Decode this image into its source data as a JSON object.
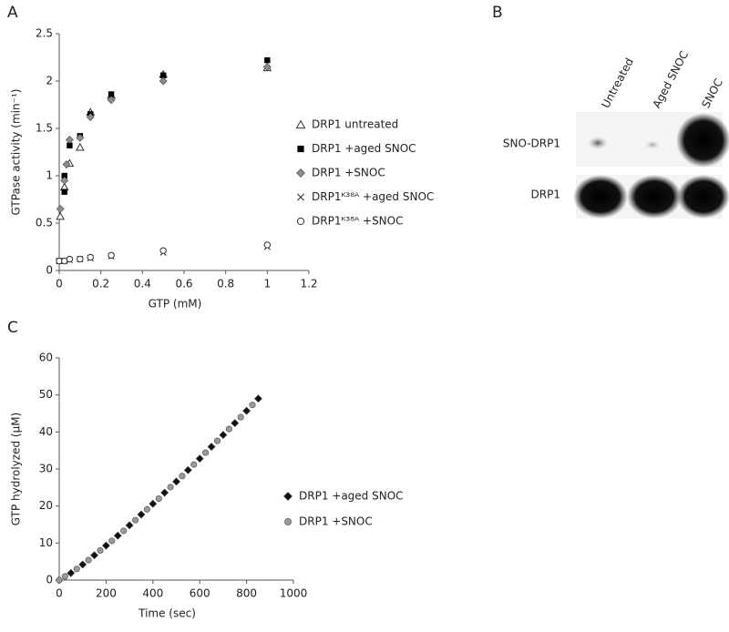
{
  "chart_data": [
    {
      "type": "scatter",
      "panel": "A",
      "xlabel": "GTP (mM)",
      "ylabel": "GTPase activity (min⁻¹)",
      "xlim": [
        0,
        1.2
      ],
      "xticks": [
        0,
        0.2,
        0.4,
        0.6,
        0.8,
        1,
        1.2
      ],
      "ylim": [
        0,
        2.5
      ],
      "yticks": [
        0,
        0.5,
        1,
        1.5,
        2,
        2.5
      ],
      "grid": false,
      "legend": "right",
      "series": [
        {
          "name": "DRP1 untreated",
          "marker": "triangle-open",
          "color": "#333333",
          "x": [
            0.005,
            0.025,
            0.05,
            0.1,
            0.15,
            0.25,
            0.5,
            1
          ],
          "values": [
            0.57,
            0.88,
            1.13,
            1.3,
            1.67,
            1.85,
            2.07,
            2.14
          ]
        },
        {
          "name": "DRP1 +aged SNOC",
          "marker": "square",
          "color": "#000000",
          "x": [
            0,
            0.025,
            0.025,
            0.05,
            0.1,
            0.15,
            0.25,
            0.5,
            1
          ],
          "values": [
            0.1,
            0.83,
            1.0,
            1.32,
            1.42,
            1.65,
            1.86,
            2.06,
            2.22
          ]
        },
        {
          "name": "DRP1 +SNOC",
          "marker": "diamond",
          "color": "#8c8c8c",
          "x": [
            0.005,
            0.025,
            0.035,
            0.05,
            0.1,
            0.15,
            0.25,
            0.5,
            1
          ],
          "values": [
            0.65,
            0.95,
            1.12,
            1.38,
            1.4,
            1.62,
            1.8,
            2.0,
            2.15
          ]
        },
        {
          "name": "DRP1ᴷ³⁸ᴬ +aged SNOC",
          "marker": "x",
          "color": "#333333",
          "x": [
            0,
            0.025,
            0.05,
            0.1,
            0.15,
            0.25,
            0.5,
            1
          ],
          "values": [
            0.1,
            0.1,
            0.11,
            0.12,
            0.13,
            0.15,
            0.19,
            0.25
          ]
        },
        {
          "name": "DRP1ᴷ³⁸ᴬ +SNOC",
          "marker": "circle-open",
          "color": "#333333",
          "x": [
            0,
            0.025,
            0.05,
            0.1,
            0.15,
            0.25,
            0.5,
            1
          ],
          "values": [
            0.1,
            0.1,
            0.12,
            0.12,
            0.14,
            0.16,
            0.21,
            0.27
          ]
        }
      ]
    },
    {
      "type": "scatter",
      "panel": "C",
      "xlabel": "Time (sec)",
      "ylabel": "GTP hydrolyzed (μM)",
      "xlim": [
        0,
        1000
      ],
      "xticks": [
        0,
        200,
        400,
        600,
        800,
        1000
      ],
      "ylim": [
        0,
        60
      ],
      "yticks": [
        0,
        10,
        20,
        30,
        40,
        50,
        60
      ],
      "grid": false,
      "legend": "right",
      "series": [
        {
          "name": "DRP1 +aged SNOC",
          "marker": "diamond",
          "color": "#111111",
          "x": [
            0,
            50,
            100,
            150,
            200,
            250,
            300,
            350,
            400,
            450,
            500,
            550,
            600,
            650,
            700,
            750,
            800,
            850
          ],
          "values": [
            0,
            1.9,
            4.2,
            6.7,
            9.3,
            12.0,
            14.8,
            17.7,
            20.6,
            23.6,
            26.6,
            29.7,
            32.8,
            36.0,
            39.2,
            42.4,
            45.7,
            49.0
          ]
        },
        {
          "name": "DRP1 +SNOC",
          "marker": "circle-gray",
          "color": "#9a9a9a",
          "x": [
            0,
            25,
            75,
            125,
            175,
            225,
            275,
            325,
            375,
            425,
            475,
            525,
            575,
            625,
            675,
            725,
            775,
            825
          ],
          "values": [
            0,
            1.0,
            3.0,
            5.4,
            8.0,
            10.6,
            13.3,
            16.2,
            19.1,
            22.0,
            25.1,
            28.1,
            31.2,
            34.4,
            37.6,
            40.8,
            44.0,
            47.3
          ]
        }
      ]
    }
  ],
  "blot": {
    "panel": "B",
    "lanes": [
      "Untreated",
      "Aged SNOC",
      "SNOC"
    ],
    "rows": [
      "SNO-DRP1",
      "DRP1"
    ]
  }
}
